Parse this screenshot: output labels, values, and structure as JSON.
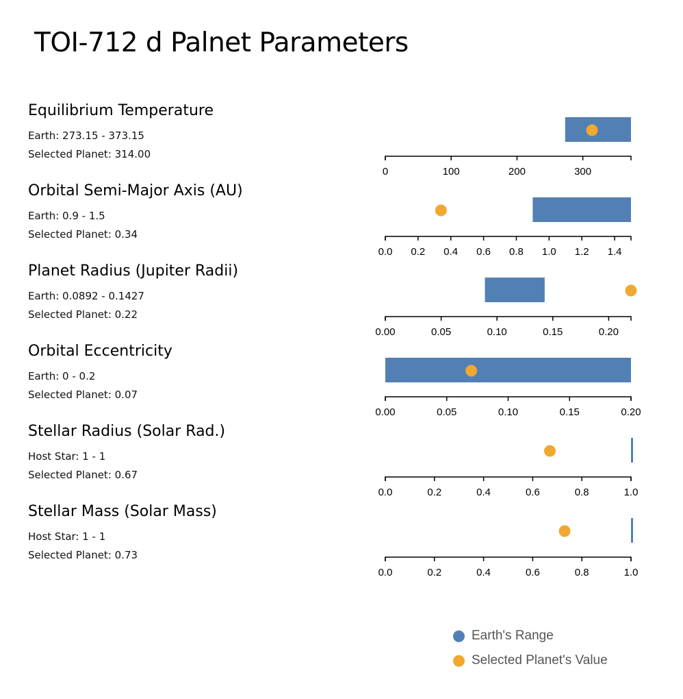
{
  "title": "TOI-712 d Palnet Parameters",
  "colors": {
    "range": "#5280b4",
    "value": "#f0a830",
    "axis": "#000000"
  },
  "params": [
    {
      "name": "Equilibrium Temperature",
      "range_text": "Earth: 273.15 - 373.15",
      "value_text": "Selected Planet: 314.00"
    },
    {
      "name": "Orbital Semi-Major Axis (AU)",
      "range_text": "Earth: 0.9 - 1.5",
      "value_text": "Selected Planet: 0.34"
    },
    {
      "name": "Planet Radius (Jupiter Radii)",
      "range_text": "Earth: 0.0892 - 0.1427",
      "value_text": "Selected Planet: 0.22"
    },
    {
      "name": "Orbital Eccentricity",
      "range_text": "Earth: 0 - 0.2",
      "value_text": "Selected Planet: 0.07"
    },
    {
      "name": "Stellar Radius (Solar Rad.)",
      "range_text": "Host Star: 1 - 1",
      "value_text": "Selected Planet: 0.67"
    },
    {
      "name": "Stellar Mass (Solar Mass)",
      "range_text": "Host Star: 1 - 1",
      "value_text": "Selected Planet: 0.73"
    }
  ],
  "legend": {
    "range_label": "Earth's Range",
    "value_label": "Selected Planet's Value"
  },
  "chart_data": [
    {
      "type": "bar",
      "title": "Equilibrium Temperature",
      "xlim": [
        0,
        373.15
      ],
      "ticks": [
        0,
        100,
        200,
        300
      ],
      "tick_labels": [
        "0",
        "100",
        "200",
        "300"
      ],
      "range": [
        273.15,
        373.15
      ],
      "value": 314.0
    },
    {
      "type": "bar",
      "title": "Orbital Semi-Major Axis (AU)",
      "xlim": [
        0,
        1.5
      ],
      "ticks": [
        0,
        0.2,
        0.4,
        0.6,
        0.8,
        1.0,
        1.2,
        1.4
      ],
      "tick_labels": [
        "0.0",
        "0.2",
        "0.4",
        "0.6",
        "0.8",
        "1.0",
        "1.2",
        "1.4"
      ],
      "range": [
        0.9,
        1.5
      ],
      "value": 0.34
    },
    {
      "type": "bar",
      "title": "Planet Radius (Jupiter Radii)",
      "xlim": [
        0,
        0.22
      ],
      "ticks": [
        0,
        0.05,
        0.1,
        0.15,
        0.2
      ],
      "tick_labels": [
        "0.00",
        "0.05",
        "0.10",
        "0.15",
        "0.20"
      ],
      "range": [
        0.0892,
        0.1427
      ],
      "value": 0.22
    },
    {
      "type": "bar",
      "title": "Orbital Eccentricity",
      "xlim": [
        0,
        0.2
      ],
      "ticks": [
        0,
        0.05,
        0.1,
        0.15,
        0.2
      ],
      "tick_labels": [
        "0.00",
        "0.05",
        "0.10",
        "0.15",
        "0.20"
      ],
      "range": [
        0,
        0.2
      ],
      "value": 0.07
    },
    {
      "type": "bar",
      "title": "Stellar Radius (Solar Rad.)",
      "xlim": [
        0,
        1
      ],
      "ticks": [
        0,
        0.2,
        0.4,
        0.6,
        0.8,
        1.0
      ],
      "tick_labels": [
        "0.0",
        "0.2",
        "0.4",
        "0.6",
        "0.8",
        "1.0"
      ],
      "range": [
        1,
        1
      ],
      "value": 0.67
    },
    {
      "type": "bar",
      "title": "Stellar Mass (Solar Mass)",
      "xlim": [
        0,
        1
      ],
      "ticks": [
        0,
        0.2,
        0.4,
        0.6,
        0.8,
        1.0
      ],
      "tick_labels": [
        "0.0",
        "0.2",
        "0.4",
        "0.6",
        "0.8",
        "1.0"
      ],
      "range": [
        1,
        1
      ],
      "value": 0.73
    }
  ]
}
